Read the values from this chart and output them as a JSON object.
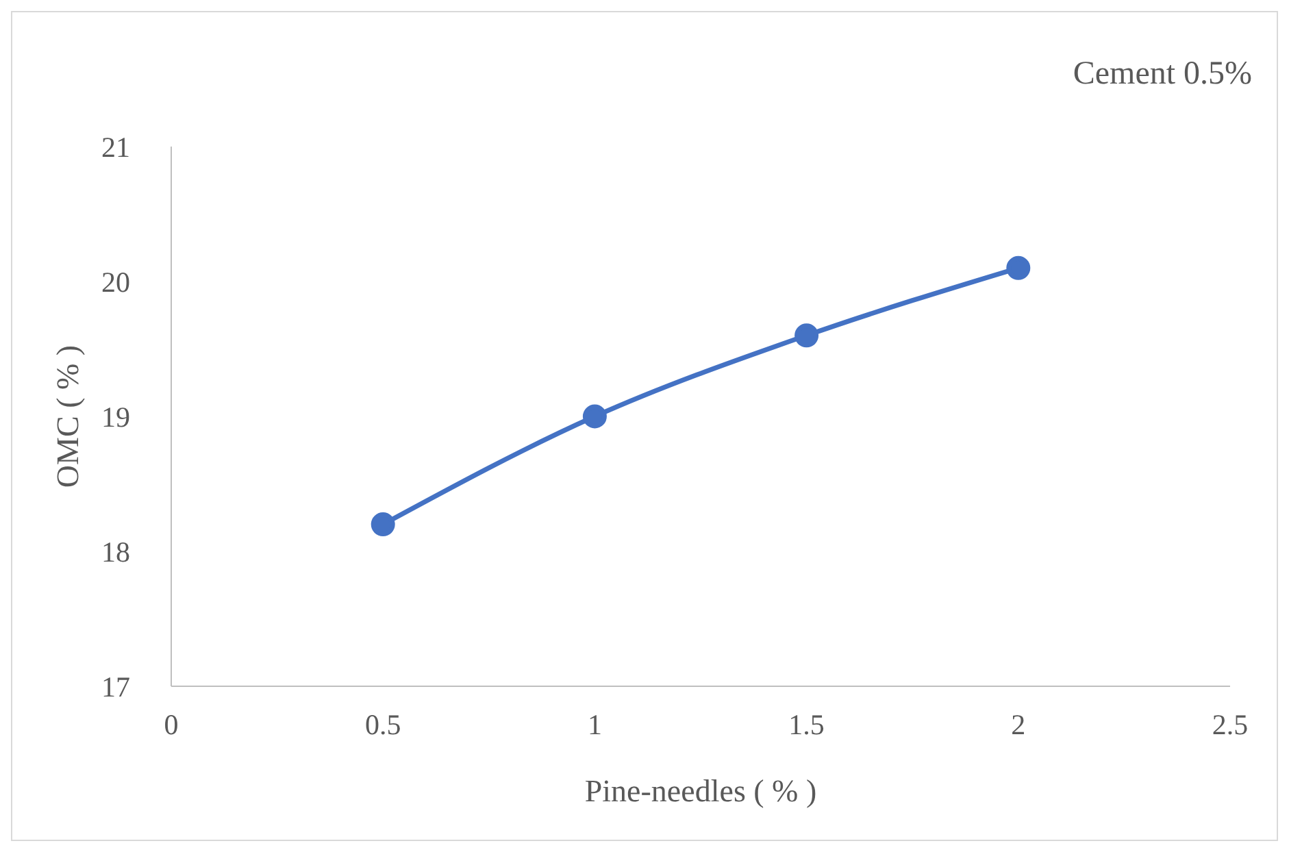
{
  "chart_data": {
    "type": "line",
    "xlabel": "Pine-needles ( % )",
    "ylabel": "OMC ( % )",
    "annotations": [
      "Cement 0.5%"
    ],
    "x": [
      0.5,
      1,
      1.5,
      2
    ],
    "series": [
      {
        "color": "#4472c4",
        "values": [
          18.2,
          19.0,
          19.6,
          20.1
        ]
      }
    ],
    "xlim": [
      0,
      2.5
    ],
    "xticks": [
      0,
      0.5,
      1,
      1.5,
      2,
      2.5
    ],
    "ylim": [
      17,
      21
    ],
    "yticks": [
      17,
      18,
      19,
      20,
      21
    ],
    "grid": false,
    "legend": false,
    "marker": "circle",
    "line_style": "solid"
  }
}
